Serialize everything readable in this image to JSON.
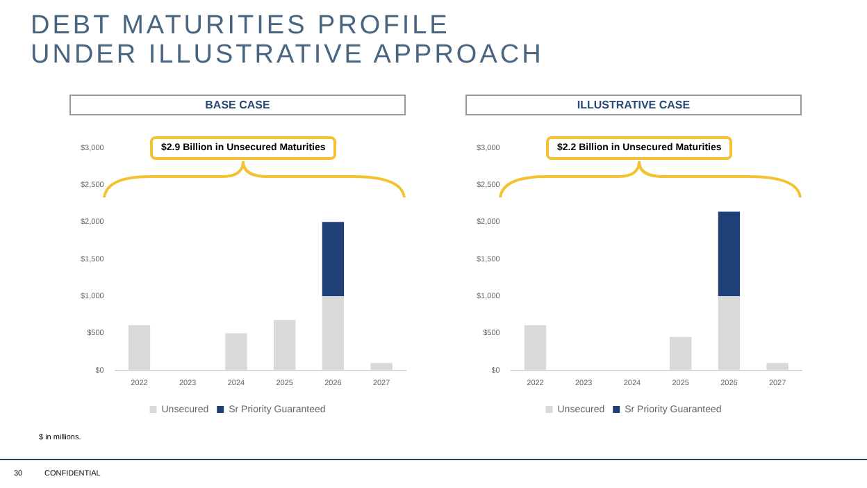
{
  "chart_data": [
    {
      "type": "bar",
      "title": "DEBT MATURITIES PROFILE UNDER ILLUSTRATIVE APPROACH",
      "subtitle": "BASE CASE",
      "stacked": true,
      "legend": "bottom",
      "grid": false,
      "categories": [
        "2022",
        "2023",
        "2024",
        "2025",
        "2026",
        "2027"
      ],
      "series": [
        {
          "name": "Unsecured",
          "color": "#d9d9d9",
          "values": [
            610,
            0,
            500,
            680,
            1000,
            100
          ]
        },
        {
          "name": "Sr Priority Guaranteed",
          "color": "#1f3f77",
          "values": [
            0,
            0,
            0,
            0,
            1000,
            0
          ]
        }
      ],
      "ylim": [
        0,
        3000
      ],
      "yticks": [
        {
          "value": 0,
          "label": "$0"
        },
        {
          "value": 500,
          "label": "$500"
        },
        {
          "value": 1000,
          "label": "$1,000"
        },
        {
          "value": 1500,
          "label": "$1,500"
        },
        {
          "value": 2000,
          "label": "$2,000"
        },
        {
          "value": 2500,
          "label": "$2,500"
        },
        {
          "value": 3000,
          "label": "$3,000"
        }
      ],
      "annotations": [
        "$2.9 Billion in Unsecured Maturities",
        "$ in millions.",
        "30",
        "CONFIDENTIAL"
      ]
    },
    {
      "type": "bar",
      "subtitle": "ILLUSTRATIVE CASE",
      "stacked": true,
      "legend": "bottom",
      "grid": false,
      "categories": [
        "2022",
        "2023",
        "2024",
        "2025",
        "2026",
        "2027"
      ],
      "series": [
        {
          "name": "Unsecured",
          "color": "#d9d9d9",
          "values": [
            610,
            0,
            0,
            450,
            1000,
            100
          ]
        },
        {
          "name": "Sr Priority Guaranteed",
          "color": "#1f3f77",
          "values": [
            0,
            0,
            0,
            0,
            1140,
            0
          ]
        }
      ],
      "ylim": [
        0,
        3000
      ],
      "yticks": [
        {
          "value": 0,
          "label": "$0"
        },
        {
          "value": 500,
          "label": "$500"
        },
        {
          "value": 1000,
          "label": "$1,000"
        },
        {
          "value": 1500,
          "label": "$1,500"
        },
        {
          "value": 2000,
          "label": "$2,000"
        },
        {
          "value": 2500,
          "label": "$2,500"
        },
        {
          "value": 3000,
          "label": "$3,000"
        }
      ],
      "annotations": [
        "$2.2 Billion in Unsecured Maturities"
      ]
    }
  ]
}
